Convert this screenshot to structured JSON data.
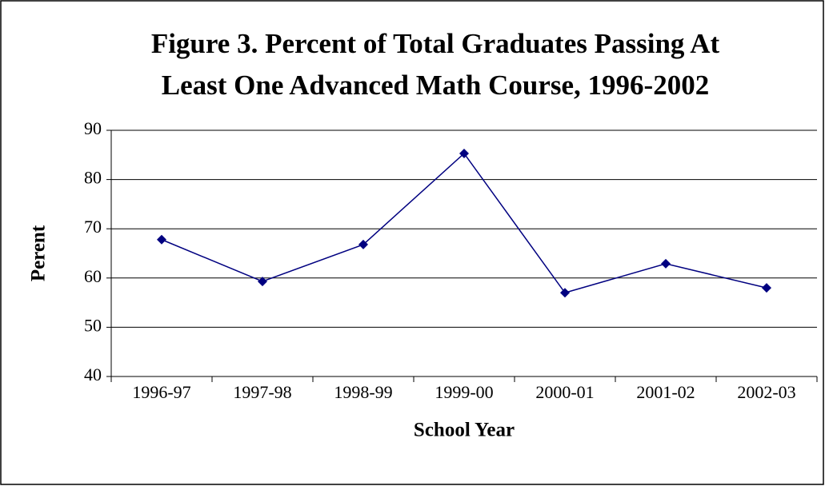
{
  "chart_data": {
    "type": "line",
    "title": [
      "Figure 3. Percent of Total Graduates Passing At",
      "Least One Advanced Math Course, 1996-2002"
    ],
    "x_label": "School Year",
    "y_label": "Perent",
    "categories": [
      "1996-97",
      "1997-98",
      "1998-99",
      "1999-00",
      "2000-01",
      "2001-02",
      "2002-03"
    ],
    "series": [
      {
        "name": "Percent",
        "color": "#000080",
        "values": [
          67.8,
          59.3,
          66.8,
          85.3,
          57,
          62.9,
          58
        ]
      }
    ],
    "ylim": [
      40,
      90
    ],
    "yticks": [
      40,
      50,
      60,
      70,
      80,
      90
    ],
    "grid": true
  }
}
